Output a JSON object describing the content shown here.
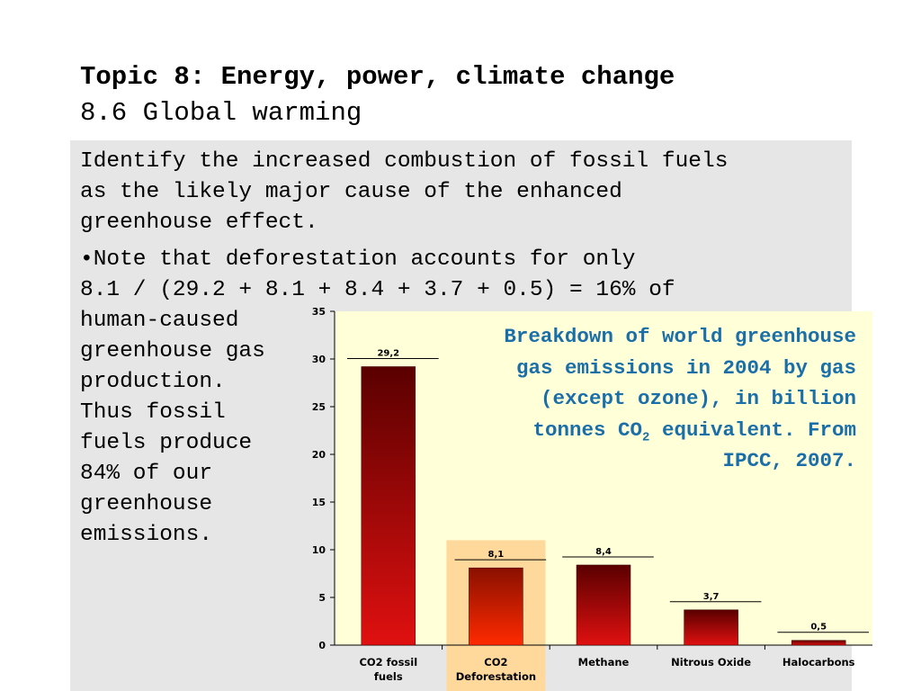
{
  "title": {
    "main": "Topic 8: Energy, power, climate change",
    "sub": "8.6 Global warming"
  },
  "body": {
    "para1": [
      "Identify the increased combustion of fossil fuels",
      "as the likely major cause of the enhanced",
      "greenhouse effect."
    ],
    "note_line1": "•Note that deforestation accounts for only",
    "note_line2": "8.1 / (29.2 + 8.1 + 8.4 + 3.7 + 0.5) = 16% of",
    "note_wrap": [
      "human-caused",
      "greenhouse gas",
      "production.",
      "Thus fossil",
      "fuels produce",
      "84% of our",
      "greenhouse",
      "emissions."
    ]
  },
  "caption": {
    "text_before_sub": "Breakdown of world greenhouse gas emissions in 2004 by gas (except ozone), in billion tonnes CO",
    "sub": "2",
    "text_after_sub": " equivalent. From IPCC, 2007."
  },
  "chart_data": {
    "type": "bar",
    "categories": [
      "CO2 fossil fuels",
      "CO2 Deforestation",
      "Methane",
      "Nitrous Oxide",
      "Halocarbons"
    ],
    "category_labels": [
      [
        "CO2 fossil",
        "fuels"
      ],
      [
        "CO2",
        "Deforestation"
      ],
      [
        "Methane"
      ],
      [
        "Nitrous Oxide"
      ],
      [
        "Halocarbons"
      ]
    ],
    "values": [
      29.2,
      8.1,
      8.4,
      3.7,
      0.5
    ],
    "data_labels": [
      "29,2",
      "8,1",
      "8,4",
      "3,7",
      "0,5"
    ],
    "highlighted_category": "CO2 Deforestation",
    "ylim": [
      0,
      35
    ],
    "yticks": [
      0,
      5,
      10,
      15,
      20,
      25,
      30,
      35
    ],
    "grid": false,
    "colors": {
      "plot_bg": "#ffffd8",
      "highlight_bg": "#ffd89c",
      "bar_top": "#5a0000",
      "bar_bottom": "#e01010",
      "highlight_bar_top": "#8a1000",
      "highlight_bar_bottom": "#ff2a00",
      "caption": "#1a6fa8"
    }
  }
}
